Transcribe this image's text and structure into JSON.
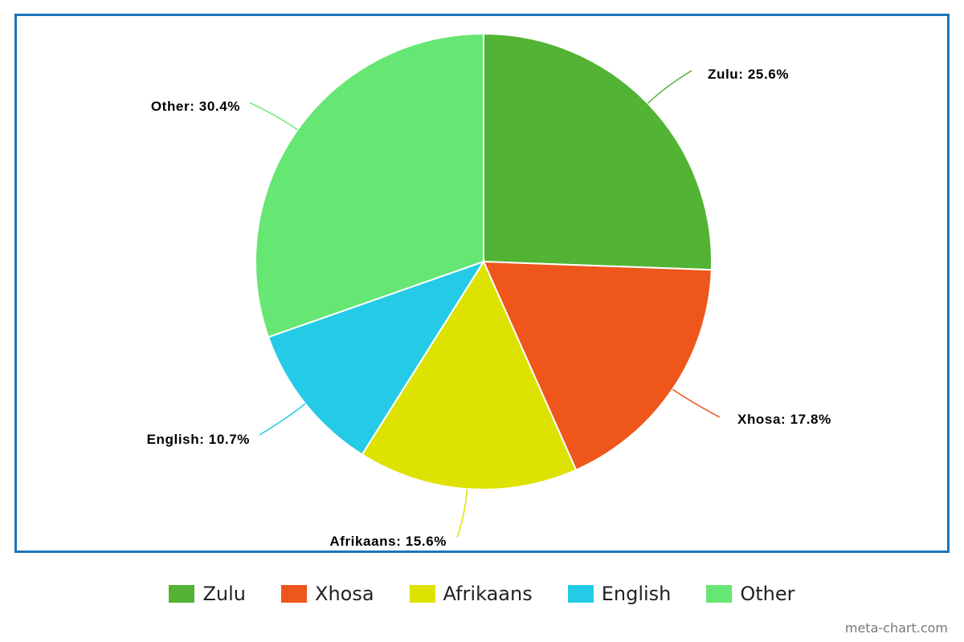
{
  "chart_data": {
    "type": "pie",
    "categories": [
      "Zulu",
      "Xhosa",
      "Afrikaans",
      "English",
      "Other"
    ],
    "values": [
      25.6,
      17.8,
      15.6,
      10.7,
      30.4
    ],
    "slice_labels": [
      "Zulu: 25.6%",
      "Xhosa: 17.8%",
      "Afrikaans: 15.6%",
      "English: 10.7%",
      "Other: 30.4%"
    ],
    "colors": [
      "#52b334",
      "#ee561c",
      "#dde200",
      "#25cbe6",
      "#66e673"
    ],
    "legend_placement": "bottom",
    "start_angle": "top, clockwise"
  },
  "legend": {
    "items": [
      {
        "label": "Zulu",
        "color": "#52b334"
      },
      {
        "label": "Xhosa",
        "color": "#ee561c"
      },
      {
        "label": "Afrikaans",
        "color": "#dde200"
      },
      {
        "label": "English",
        "color": "#25cbe6"
      },
      {
        "label": "Other",
        "color": "#66e673"
      }
    ]
  },
  "credit": "meta-chart.com",
  "frame_color": "#1b75bb"
}
